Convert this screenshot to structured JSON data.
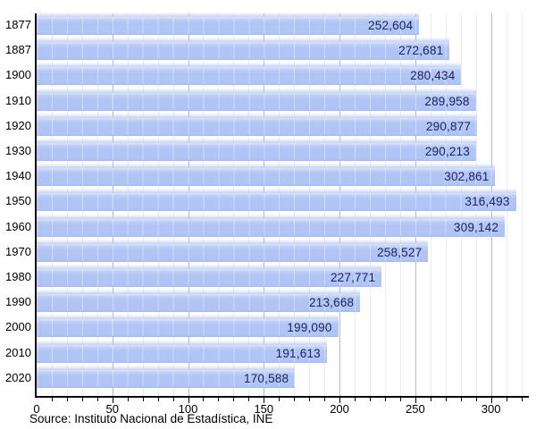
{
  "chart_data": {
    "type": "bar",
    "orientation": "horizontal",
    "title": "",
    "xlabel": "",
    "ylabel": "",
    "categories": [
      "1877",
      "1887",
      "1900",
      "1910",
      "1920",
      "1930",
      "1940",
      "1950",
      "1960",
      "1970",
      "1980",
      "1990",
      "2000",
      "2010",
      "2020"
    ],
    "values": [
      252604,
      272681,
      280434,
      289958,
      290877,
      290213,
      302861,
      316493,
      309142,
      258527,
      227771,
      213668,
      199090,
      191613,
      170588
    ],
    "value_labels": [
      "252,604",
      "272,681",
      "280,434",
      "289,958",
      "290,877",
      "290,213",
      "302,861",
      "316,493",
      "309,142",
      "258,527",
      "227,771",
      "213,668",
      "199,090",
      "191,613",
      "170,588"
    ],
    "x_axis": {
      "tick_labels": [
        "0",
        "50",
        "100",
        "150",
        "200",
        "250",
        "300"
      ],
      "tick_values": [
        0,
        50,
        100,
        150,
        200,
        250,
        300
      ],
      "minor_step": 10,
      "minor_max": 320,
      "max": 325,
      "unit_divisor": 1000
    },
    "grid": true,
    "legend_position": "none",
    "source": "Source: Instituto Nacional de Estadística, INE",
    "colors": {
      "bar": "#b0c5f6",
      "bar_glow": "#c7d6fa",
      "value_text": "#1c2260",
      "axis": "#000000",
      "grid_minor": "#ececec",
      "grid_major": "#b9b9b9",
      "background": "#ffffff"
    }
  }
}
